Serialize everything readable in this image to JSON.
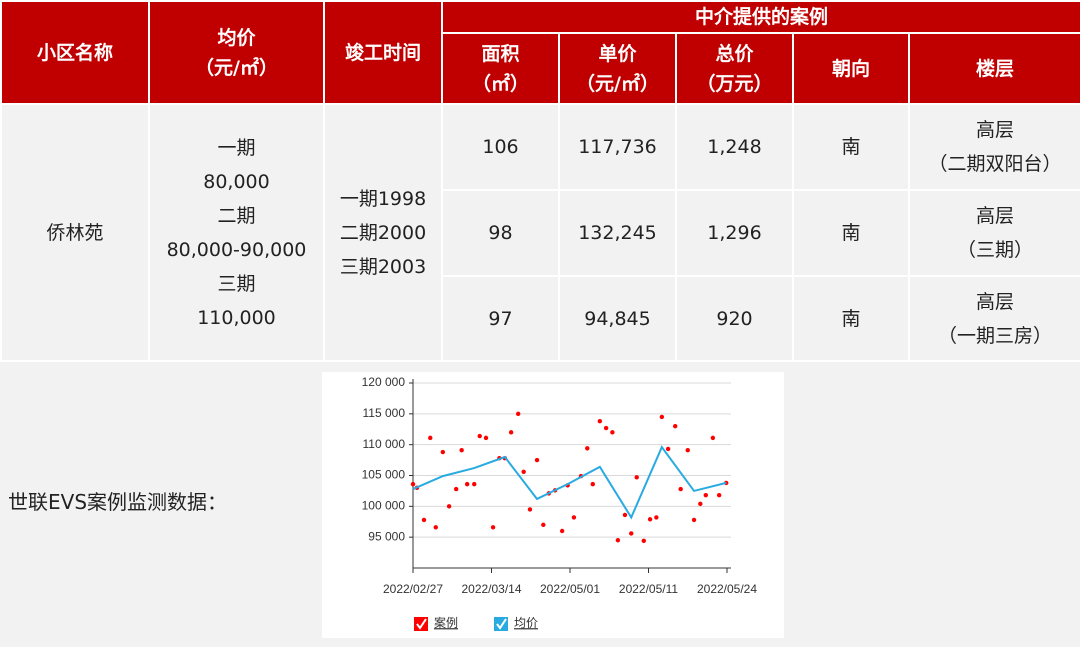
{
  "table": {
    "group_header": "中介提供的案例",
    "headers": [
      [
        "小区名称"
      ],
      [
        "均价",
        "（元/㎡）"
      ],
      [
        "竣工时间"
      ],
      [
        "面积",
        "（㎡）"
      ],
      [
        "单价",
        "（元/㎡）"
      ],
      [
        "总价",
        "（万元）"
      ],
      [
        "朝向"
      ],
      [
        "楼层"
      ]
    ],
    "community": [
      "侨林苑"
    ],
    "avg_price": [
      "一期",
      "80,000",
      "二期",
      "80,000-90,000",
      "三期",
      "110,000"
    ],
    "completion": [
      "一期1998",
      "二期2000",
      "三期2003"
    ],
    "rows": [
      [
        [
          "106"
        ],
        [
          "117,736"
        ],
        [
          "1,248"
        ],
        [
          "南"
        ],
        [
          "高层",
          "（二期双阳台）"
        ]
      ],
      [
        [
          "98"
        ],
        [
          "132,245"
        ],
        [
          "1,296"
        ],
        [
          "南"
        ],
        [
          "高层",
          "（三期）"
        ]
      ],
      [
        [
          "97"
        ],
        [
          "94,845"
        ],
        [
          "920"
        ],
        [
          "南"
        ],
        [
          "高层",
          "（一期三房）"
        ]
      ]
    ]
  },
  "monitor_label": "世联EVS案例监测数据：",
  "chart": {
    "type": "scatter",
    "xlim": [
      0,
      4
    ],
    "xticks": [
      {
        "value": 0,
        "label": "2022/02/27"
      },
      {
        "value": 1,
        "label": "2022/03/14"
      },
      {
        "value": 2,
        "label": "2022/05/01"
      },
      {
        "value": 3,
        "label": "2022/05/11"
      },
      {
        "value": 4,
        "label": "2022/05/24"
      }
    ],
    "ylim": [
      90000,
      120000
    ],
    "yticks": [
      {
        "value": 95000,
        "label": "95 000"
      },
      {
        "value": 100000,
        "label": "100 000"
      },
      {
        "value": 105000,
        "label": "105 000"
      },
      {
        "value": 110000,
        "label": "110 000"
      },
      {
        "value": 115000,
        "label": "115 000"
      },
      {
        "value": 120000,
        "label": "120 000"
      }
    ],
    "grid": true,
    "series": [
      {
        "name": "案例",
        "color": "#ff0000",
        "type": "scatter",
        "x": [
          0,
          0.05,
          0.14,
          0.22,
          0.29,
          0.38,
          0.46,
          0.55,
          0.62,
          0.69,
          0.78,
          0.85,
          0.93,
          1.02,
          1.1,
          1.17,
          1.25,
          1.34,
          1.41,
          1.49,
          1.58,
          1.66,
          1.73,
          1.81,
          1.9,
          1.97,
          2.05,
          2.14,
          2.22,
          2.29,
          2.38,
          2.46,
          2.54,
          2.61,
          2.7,
          2.78,
          2.85,
          2.94,
          3.02,
          3.1,
          3.17,
          3.25,
          3.34,
          3.41,
          3.5,
          3.58,
          3.66,
          3.73,
          3.82,
          3.9,
          3.99
        ],
        "values": [
          103600,
          103000,
          97800,
          111100,
          96600,
          108800,
          100000,
          102800,
          109100,
          103600,
          103600,
          111400,
          111100,
          96600,
          107800,
          107800,
          112000,
          115000,
          105600,
          99500,
          107500,
          97000,
          102100,
          102600,
          96000,
          103400,
          98200,
          104900,
          109400,
          103600,
          113800,
          112700,
          112000,
          94500,
          98600,
          95600,
          104700,
          94400,
          97900,
          98200,
          114500,
          109300,
          113000,
          102800,
          109100,
          97800,
          100400,
          101800,
          111100,
          101800,
          103800
        ]
      },
      {
        "name": "均价",
        "color": "#29abe2",
        "type": "line",
        "x": [
          0,
          0.38,
          0.78,
          1.17,
          1.58,
          1.97,
          2.38,
          2.78,
          3.17,
          3.58,
          3.99
        ],
        "values": [
          102800,
          104900,
          106200,
          108000,
          101200,
          103600,
          106400,
          98200,
          109600,
          102500,
          103800
        ]
      }
    ]
  }
}
